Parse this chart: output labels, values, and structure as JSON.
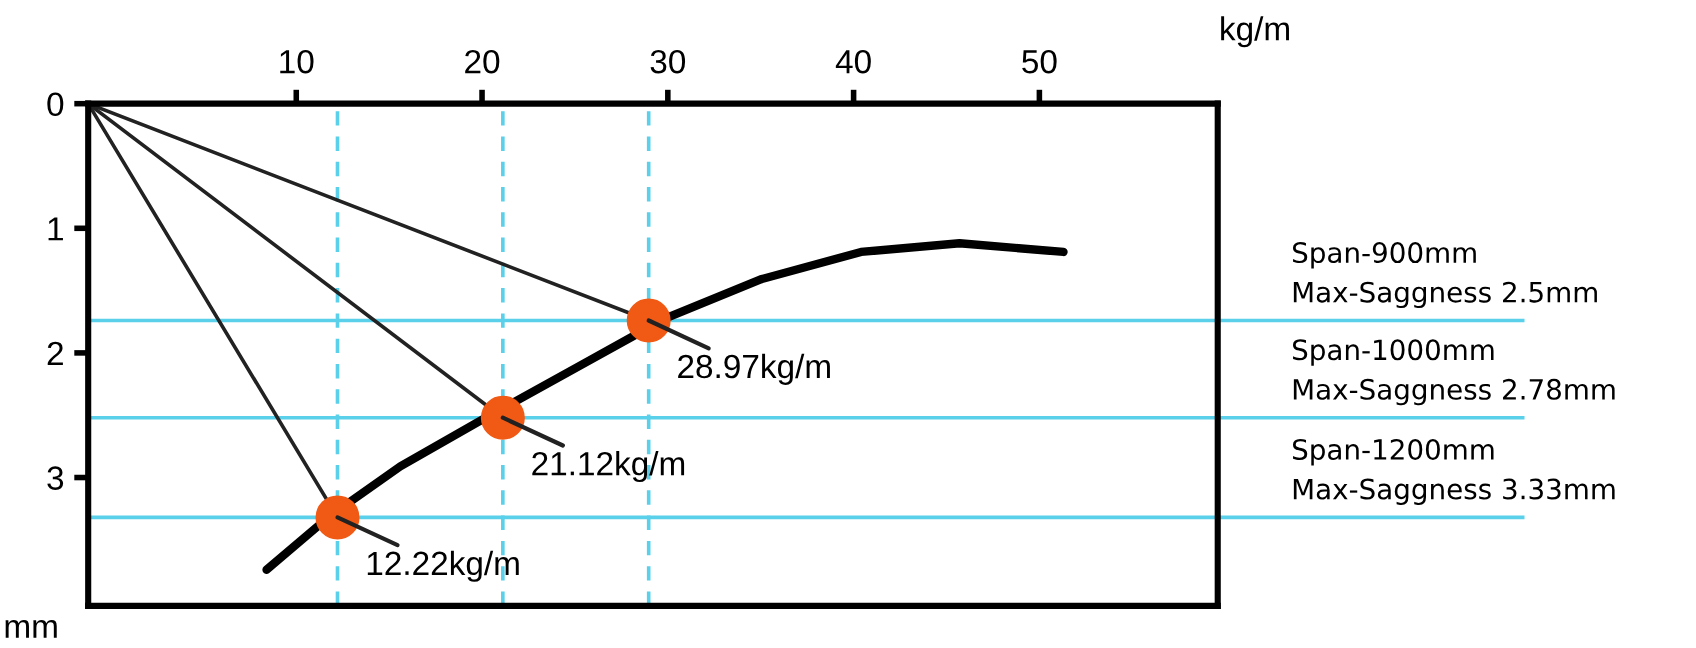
{
  "chart_data": {
    "type": "line",
    "xlabel": "kg/m",
    "ylabel": "mm",
    "xlim": [
      -1.2,
      59.6
    ],
    "ylim": [
      4.03,
      0
    ],
    "xticks": [
      10,
      20,
      30,
      40,
      50
    ],
    "yticks": [
      0,
      1,
      2,
      3
    ],
    "grid": false,
    "legend": false,
    "series": [
      {
        "color": "#000000",
        "x": [
          8.4,
          11.8,
          15.6,
          20.2,
          25.3,
          29.9,
          35,
          40.4,
          45.7,
          51.3
        ],
        "values": [
          3.74,
          3.31,
          2.91,
          2.52,
          2.1,
          1.72,
          1.41,
          1.19,
          1.12,
          1.19
        ]
      },
      {
        "color": "#222222",
        "x": [
          -1.2,
          12.22
        ],
        "values": [
          0,
          3.32
        ]
      },
      {
        "color": "#222222",
        "x": [
          -1.2,
          21.12
        ],
        "values": [
          0,
          2.52
        ]
      },
      {
        "color": "#222222",
        "x": [
          -1.2,
          28.97
        ],
        "values": [
          0,
          1.74
        ]
      },
      {
        "type": "scatter",
        "color": "#f05a14",
        "marker": "circle",
        "x": [
          12.22,
          21.12,
          28.97
        ],
        "values": [
          3.32,
          2.52,
          1.74
        ]
      }
    ],
    "ref_lines": [
      {
        "axis": "y",
        "value": 1.74,
        "label": "Span-900mm\nMax-Saggness 2.5mm",
        "color": "#5bd0ea",
        "line_style": "solid"
      },
      {
        "axis": "y",
        "value": 2.52,
        "label": "Span-1000mm\nMax-Saggness 2.78mm",
        "color": "#5bd0ea",
        "line_style": "solid"
      },
      {
        "axis": "y",
        "value": 3.32,
        "label": "Span-1200mm\nMax-Saggness 3.33mm",
        "color": "#5bd0ea",
        "line_style": "solid"
      },
      {
        "axis": "x",
        "value": 12.22,
        "color": "#5bd0ea",
        "line_style": "dashed"
      },
      {
        "axis": "x",
        "value": 21.12,
        "color": "#5bd0ea",
        "line_style": "dashed"
      },
      {
        "axis": "x",
        "value": 28.97,
        "color": "#5bd0ea",
        "line_style": "dashed"
      }
    ],
    "annotations": [
      {
        "text": "12.22kg/m",
        "x": 12.22,
        "y": 3.32
      },
      {
        "text": "21.12kg/m",
        "x": 21.12,
        "y": 2.52
      },
      {
        "text": "28.97kg/m",
        "x": 28.97,
        "y": 1.74
      }
    ]
  }
}
